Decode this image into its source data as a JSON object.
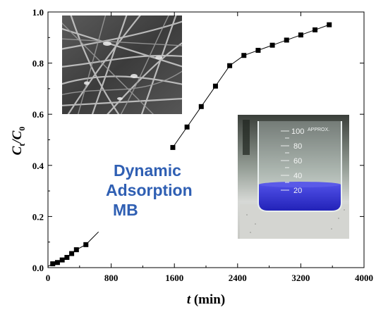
{
  "chart_data": {
    "type": "line",
    "title": "",
    "xlabel": {
      "italic": "t",
      "rest": " (min)"
    },
    "ylabel": {
      "main": "C",
      "sub1": "t",
      "sep": "/C",
      "sub2": "0"
    },
    "xlim": [
      0,
      4000
    ],
    "ylim": [
      0,
      1.0
    ],
    "xticks": [
      "0",
      "800",
      "1600",
      "2400",
      "3200",
      "4000"
    ],
    "yticks": [
      "0.0",
      "0.2",
      "0.4",
      "0.6",
      "0.8",
      "1.0"
    ],
    "grid": false,
    "legend": "none",
    "marker": "square",
    "marker_color": "#000000",
    "series": [
      {
        "segment": "early",
        "x": [
          60,
          120,
          180,
          240,
          300,
          360,
          480
        ],
        "y": [
          0.015,
          0.02,
          0.03,
          0.04,
          0.055,
          0.07,
          0.09
        ],
        "line_to": [
          640,
          0.14
        ]
      },
      {
        "segment": "late",
        "x": [
          1580,
          1760,
          1940,
          2120,
          2300,
          2480,
          2660,
          2840,
          3020,
          3200,
          3380,
          3560
        ],
        "y": [
          0.47,
          0.55,
          0.63,
          0.71,
          0.79,
          0.83,
          0.85,
          0.87,
          0.89,
          0.91,
          0.93,
          0.95
        ]
      }
    ],
    "annotations": {
      "line1": "Dynamic",
      "line2": "Adsorption",
      "line3": "MB",
      "color": "#2f5fb3"
    },
    "insets": [
      {
        "name": "sem-fiber-image"
      },
      {
        "name": "beaker-photo",
        "beaker_marks": [
          "100",
          "80",
          "60",
          "40",
          "20"
        ],
        "beaker_text": "APPROX.",
        "solution_color": "#3a3ad6"
      }
    ]
  }
}
